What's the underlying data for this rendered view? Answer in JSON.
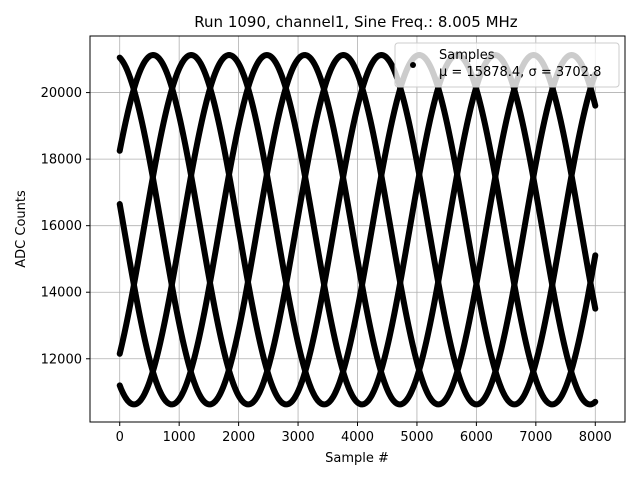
{
  "chart_data": {
    "type": "scatter",
    "title": "Run 1090, channel1, Sine Freq.: 8.005 MHz",
    "xlabel": "Sample #",
    "ylabel": "ADC Counts",
    "xlim": [
      -500,
      8500
    ],
    "ylim": [
      10100,
      21700
    ],
    "xticks": [
      0,
      1000,
      2000,
      3000,
      4000,
      5000,
      6000,
      7000,
      8000
    ],
    "yticks": [
      12000,
      14000,
      16000,
      18000,
      20000
    ],
    "grid": true,
    "legend": {
      "location": "top-right",
      "entries": [
        {
          "label": "Samples",
          "stats": "μ = 15878.4, σ = 3702.8"
        }
      ]
    },
    "series": [
      {
        "name": "Samples",
        "color": "#000000",
        "x_range": [
          0,
          8000
        ],
        "mean": 15878.4,
        "amplitude": 5250,
        "period_samples": 3200,
        "traces": [
          {
            "start_value": 21050,
            "start_direction": "down"
          },
          {
            "start_value": 18250,
            "start_direction": "up"
          },
          {
            "start_value": 16650,
            "start_direction": "down"
          },
          {
            "start_value": 12150,
            "start_direction": "up"
          },
          {
            "start_value": 11200,
            "start_direction": "down"
          }
        ]
      }
    ]
  }
}
